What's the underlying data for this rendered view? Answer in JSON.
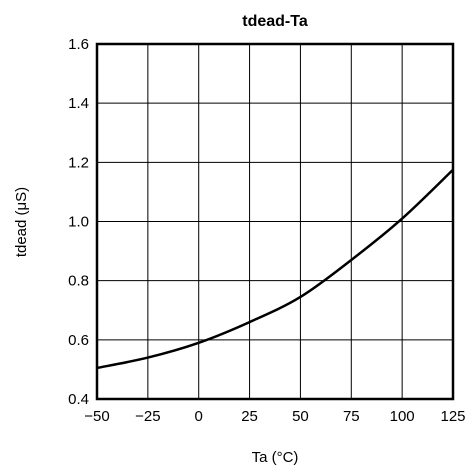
{
  "chart_data": {
    "type": "line",
    "title": "tdead-Ta",
    "xlabel": "Ta (°C)",
    "ylabel": "tdead (μS)",
    "xlim": [
      -50,
      125
    ],
    "ylim": [
      0.4,
      1.6
    ],
    "xticks": [
      -50,
      -25,
      0,
      25,
      50,
      75,
      100,
      125
    ],
    "yticks": [
      0.4,
      0.6,
      0.8,
      1.0,
      1.2,
      1.4,
      1.6
    ],
    "xtick_labels": [
      "−50",
      "−25",
      "0",
      "25",
      "50",
      "75",
      "100",
      "125"
    ],
    "ytick_labels": [
      "0.4",
      "0.6",
      "0.8",
      "1.0",
      "1.2",
      "1.4",
      "1.6"
    ],
    "grid": true,
    "series": [
      {
        "x": [
          -50,
          -25,
          0,
          25,
          50,
          75,
          100,
          125
        ],
        "y": [
          0.505,
          0.54,
          0.59,
          0.66,
          0.745,
          0.87,
          1.01,
          1.175
        ],
        "color": "#000000"
      }
    ]
  }
}
